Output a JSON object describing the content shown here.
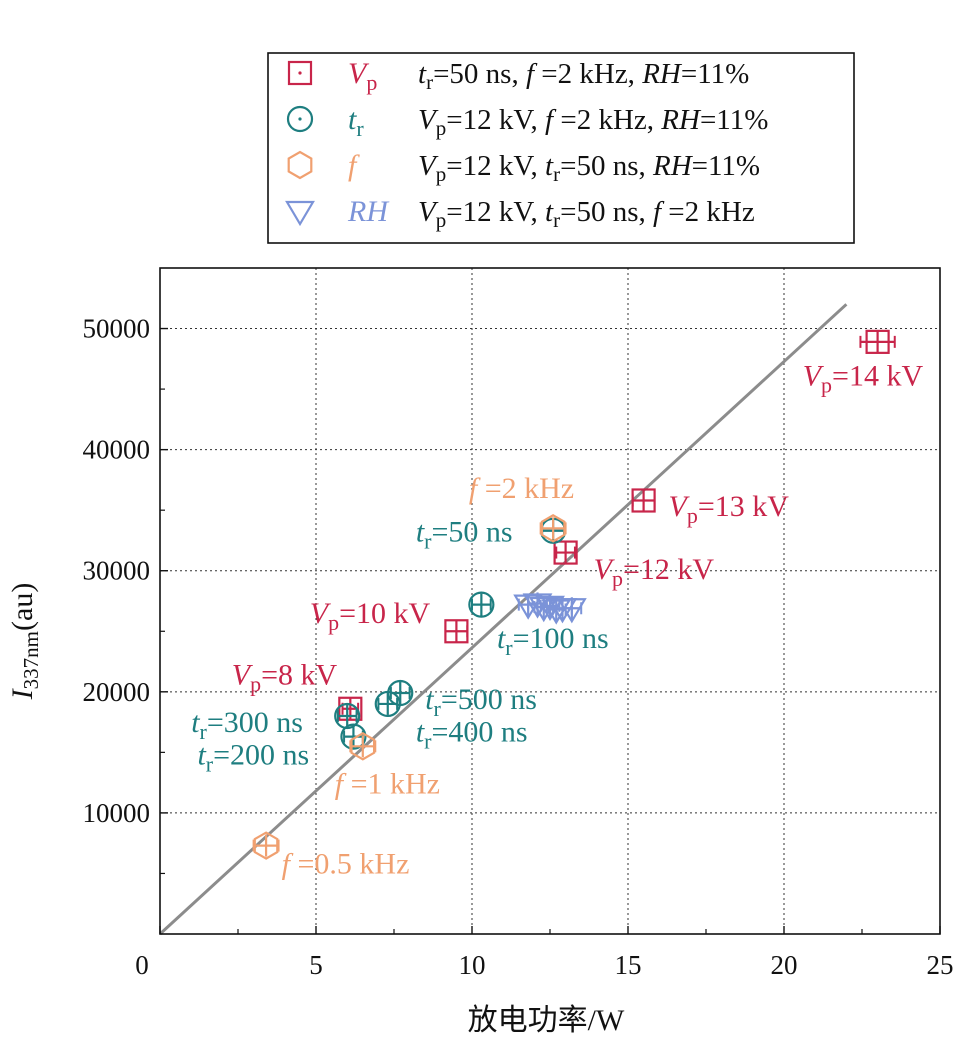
{
  "chart_data": {
    "type": "scatter",
    "xlabel": "放电功率/W",
    "ylabel": {
      "main": "I",
      "sub": "337nm",
      "rest": "(au)"
    },
    "xlim": [
      0,
      25
    ],
    "ylim": [
      0,
      55000
    ],
    "x_ticks": [
      0,
      5,
      10,
      15,
      20,
      25
    ],
    "y_ticks": [
      10000,
      20000,
      30000,
      40000,
      50000
    ],
    "x_tick_labels": [
      "0",
      "5",
      "10",
      "15",
      "20",
      "25"
    ],
    "y_tick_labels": [
      "10000",
      "20000",
      "30000",
      "40000",
      "50000"
    ],
    "grid": true,
    "legend_position": "top",
    "fit_line": {
      "x": [
        0,
        22
      ],
      "y": [
        0,
        52000
      ],
      "color": "#8c8c8c"
    },
    "series": [
      {
        "key": "Vp",
        "marker": "square",
        "color": "#c8254a",
        "legend_symbol": {
          "main": "V",
          "sub": "p"
        },
        "legend_desc": [
          {
            "t": "t",
            "i": true
          },
          {
            "t": "r",
            "sub": true
          },
          {
            "t": "=50 ns, "
          },
          {
            "t": "f",
            "i": true
          },
          {
            "t": " =2 kHz, "
          },
          {
            "t": "RH",
            "i": true
          },
          {
            "t": "=11%"
          }
        ],
        "points": [
          {
            "x": 6.1,
            "y": 18600,
            "err": 0.25
          },
          {
            "x": 9.5,
            "y": 25000,
            "err": 0.35
          },
          {
            "x": 13.0,
            "y": 31500,
            "err": 0.3
          },
          {
            "x": 15.5,
            "y": 35800,
            "err": 0.35
          },
          {
            "x": 23.0,
            "y": 48900,
            "err": 0.55
          }
        ]
      },
      {
        "key": "tr",
        "marker": "circle",
        "color": "#1e7e80",
        "legend_symbol": {
          "main": "t",
          "sub": "r"
        },
        "legend_desc": [
          {
            "t": "V",
            "i": true
          },
          {
            "t": "p",
            "sub": true
          },
          {
            "t": "=12 kV, "
          },
          {
            "t": "f",
            "i": true
          },
          {
            "t": " =2 kHz, "
          },
          {
            "t": "RH",
            "i": true
          },
          {
            "t": "=11%"
          }
        ],
        "points": [
          {
            "x": 12.6,
            "y": 33300,
            "err": 0.35
          },
          {
            "x": 10.3,
            "y": 27200,
            "err": 0.3
          },
          {
            "x": 6.0,
            "y": 18000,
            "err": 0.3
          },
          {
            "x": 6.2,
            "y": 16300,
            "err": 0.3
          },
          {
            "x": 7.3,
            "y": 19000,
            "err": 0.3
          },
          {
            "x": 7.7,
            "y": 19900,
            "err": 0.3
          }
        ]
      },
      {
        "key": "f",
        "marker": "hexagon",
        "color": "#f0a070",
        "legend_symbol": {
          "main": "f",
          "sub": ""
        },
        "legend_desc": [
          {
            "t": "V",
            "i": true
          },
          {
            "t": "p",
            "sub": true
          },
          {
            "t": "=12 kV, "
          },
          {
            "t": "t",
            "i": true
          },
          {
            "t": "r",
            "sub": true
          },
          {
            "t": "=50 ns, "
          },
          {
            "t": "RH",
            "i": true
          },
          {
            "t": "=11%"
          }
        ],
        "points": [
          {
            "x": 3.4,
            "y": 7300,
            "err": 0.4
          },
          {
            "x": 6.5,
            "y": 15500,
            "err": 0.4
          },
          {
            "x": 12.6,
            "y": 33500,
            "err": 0.4
          }
        ]
      },
      {
        "key": "RH",
        "marker": "triangle-down",
        "color": "#7b93d8",
        "legend_symbol": {
          "main": "RH",
          "sub": ""
        },
        "legend_desc": [
          {
            "t": "V",
            "i": true
          },
          {
            "t": "p",
            "sub": true
          },
          {
            "t": "=12 kV, "
          },
          {
            "t": "t",
            "i": true
          },
          {
            "t": "r",
            "sub": true
          },
          {
            "t": "=50 ns, "
          },
          {
            "t": "f",
            "i": true
          },
          {
            "t": " =2 kHz"
          }
        ],
        "points": [
          {
            "x": 11.8,
            "y": 27200,
            "err": 0.3
          },
          {
            "x": 12.1,
            "y": 27300,
            "err": 0.3
          },
          {
            "x": 12.3,
            "y": 27000,
            "err": 0.3
          },
          {
            "x": 12.5,
            "y": 27100,
            "err": 0.3
          },
          {
            "x": 12.7,
            "y": 26800,
            "err": 0.3
          },
          {
            "x": 12.9,
            "y": 26900,
            "err": 0.3
          },
          {
            "x": 13.2,
            "y": 26900,
            "err": 0.3
          }
        ]
      }
    ],
    "annotations": [
      {
        "key": "vp-14kv",
        "color": "#c8254a",
        "x": 20.6,
        "y": 45300,
        "parts": [
          {
            "t": "V",
            "i": true
          },
          {
            "t": "p",
            "sub": true
          },
          {
            "t": "=14 kV"
          }
        ]
      },
      {
        "key": "vp-13kv",
        "color": "#c8254a",
        "x": 16.3,
        "y": 34500,
        "parts": [
          {
            "t": "V",
            "i": true
          },
          {
            "t": "p",
            "sub": true
          },
          {
            "t": "=13 kV"
          }
        ]
      },
      {
        "key": "vp-12kv",
        "color": "#c8254a",
        "x": 13.9,
        "y": 29300,
        "parts": [
          {
            "t": "V",
            "i": true
          },
          {
            "t": "p",
            "sub": true
          },
          {
            "t": "=12 kV"
          }
        ]
      },
      {
        "key": "vp-10kv",
        "color": "#c8254a",
        "x": 4.8,
        "y": 25700,
        "parts": [
          {
            "t": "V",
            "i": true
          },
          {
            "t": "p",
            "sub": true
          },
          {
            "t": "=10 kV"
          }
        ]
      },
      {
        "key": "vp-8kv",
        "color": "#c8254a",
        "x": 2.3,
        "y": 20600,
        "parts": [
          {
            "t": "V",
            "i": true
          },
          {
            "t": "p",
            "sub": true
          },
          {
            "t": "=8 kV"
          }
        ]
      },
      {
        "key": "f-2khz",
        "color": "#f0a070",
        "x": 9.9,
        "y": 36000,
        "parts": [
          {
            "t": "f",
            "i": true
          },
          {
            "t": " =2 kHz"
          }
        ]
      },
      {
        "key": "tr-50ns",
        "color": "#1e7e80",
        "x": 8.2,
        "y": 32400,
        "parts": [
          {
            "t": "t",
            "i": true
          },
          {
            "t": "r",
            "sub": true
          },
          {
            "t": "=50 ns"
          }
        ]
      },
      {
        "key": "tr-100ns",
        "color": "#1e7e80",
        "x": 10.8,
        "y": 23600,
        "parts": [
          {
            "t": "t",
            "i": true
          },
          {
            "t": "r",
            "sub": true
          },
          {
            "t": "=100 ns"
          }
        ]
      },
      {
        "key": "tr-500ns",
        "color": "#1e7e80",
        "x": 8.5,
        "y": 18600,
        "parts": [
          {
            "t": "t",
            "i": true
          },
          {
            "t": "r",
            "sub": true
          },
          {
            "t": "=500 ns"
          }
        ]
      },
      {
        "key": "tr-400ns",
        "color": "#1e7e80",
        "x": 8.2,
        "y": 15900,
        "parts": [
          {
            "t": "t",
            "i": true
          },
          {
            "t": "r",
            "sub": true
          },
          {
            "t": "=400 ns"
          }
        ]
      },
      {
        "key": "tr-300ns",
        "color": "#1e7e80",
        "x": 1.0,
        "y": 16700,
        "parts": [
          {
            "t": "t",
            "i": true
          },
          {
            "t": "r",
            "sub": true
          },
          {
            "t": "=300 ns"
          }
        ]
      },
      {
        "key": "tr-200ns",
        "color": "#1e7e80",
        "x": 1.2,
        "y": 14000,
        "parts": [
          {
            "t": "t",
            "i": true
          },
          {
            "t": "r",
            "sub": true
          },
          {
            "t": "=200 ns"
          }
        ]
      },
      {
        "key": "f-1khz",
        "color": "#f0a070",
        "x": 5.6,
        "y": 11600,
        "parts": [
          {
            "t": "f",
            "i": true
          },
          {
            "t": " =1 kHz"
          }
        ]
      },
      {
        "key": "f-0.5khz",
        "color": "#f0a070",
        "x": 3.9,
        "y": 5000,
        "parts": [
          {
            "t": "f",
            "i": true
          },
          {
            "t": " =0.5 kHz"
          }
        ]
      }
    ]
  }
}
